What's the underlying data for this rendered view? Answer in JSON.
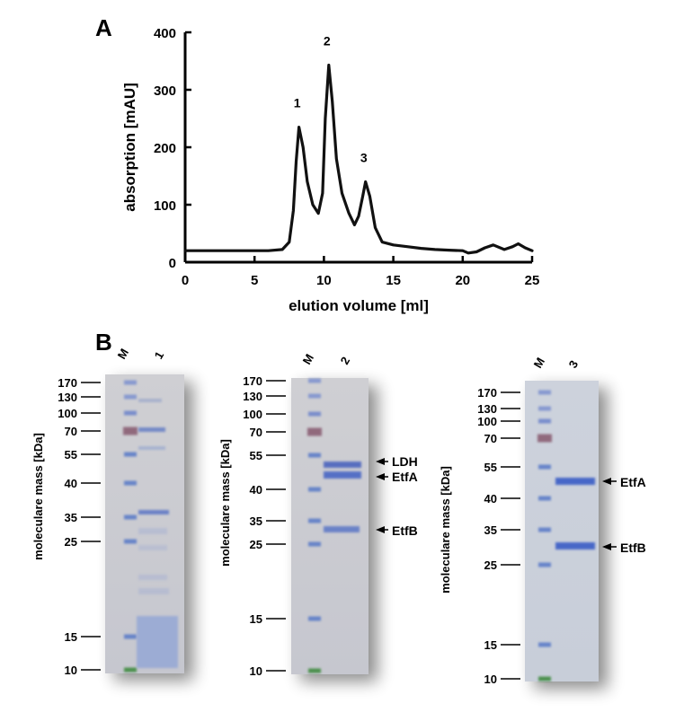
{
  "panel_a_label": "A",
  "panel_b_label": "B",
  "chart_data": {
    "type": "line",
    "xlabel": "elution volume [ml]",
    "ylabel": "absorption [mAU]",
    "xlim": [
      0,
      25
    ],
    "ylim": [
      0,
      400
    ],
    "xticks": [
      "0",
      "5",
      "10",
      "15",
      "20",
      "25"
    ],
    "yticks": [
      "0",
      "100",
      "200",
      "300",
      "400"
    ],
    "x": [
      0,
      1,
      2,
      3,
      4,
      5,
      6,
      7,
      7.5,
      7.8,
      8.0,
      8.2,
      8.5,
      8.8,
      9.2,
      9.6,
      9.9,
      10.1,
      10.35,
      10.6,
      10.9,
      11.3,
      11.8,
      12.2,
      12.5,
      12.8,
      13.0,
      13.3,
      13.7,
      14.2,
      15,
      16,
      17,
      18,
      19,
      20,
      20.4,
      21,
      21.6,
      22.2,
      23,
      23.6,
      24,
      24.5,
      25
    ],
    "y": [
      20,
      20,
      20,
      20,
      20,
      20,
      20,
      22,
      35,
      90,
      175,
      235,
      200,
      140,
      100,
      85,
      120,
      250,
      343,
      280,
      180,
      120,
      85,
      65,
      80,
      115,
      140,
      115,
      60,
      35,
      30,
      27,
      24,
      22,
      21,
      20,
      16,
      18,
      25,
      30,
      22,
      27,
      32,
      25,
      20
    ],
    "annotations": [
      {
        "text": "1",
        "x": 8.2,
        "y": 235
      },
      {
        "text": "2",
        "x": 10.35,
        "y": 343
      },
      {
        "text": "3",
        "x": 13.0,
        "y": 140
      }
    ],
    "grid": false
  },
  "gels": [
    {
      "ylabel": "moleculare mass [kDa]",
      "lanes": [
        "M",
        "1"
      ],
      "markers": [
        "170",
        "130",
        "100",
        "70",
        "55",
        "40",
        "35",
        "25",
        "15",
        "10"
      ],
      "annotations": []
    },
    {
      "ylabel": "moleculare mass [kDa]",
      "lanes": [
        "M",
        "2"
      ],
      "markers": [
        "170",
        "130",
        "100",
        "70",
        "55",
        "40",
        "35",
        "25",
        "15",
        "10"
      ],
      "annotations": [
        "LDH",
        "EtfA",
        "EtfB"
      ]
    },
    {
      "ylabel": "moleculare mass [kDa]",
      "lanes": [
        "M",
        "3"
      ],
      "markers": [
        "170",
        "130",
        "100",
        "70",
        "55",
        "40",
        "35",
        "25",
        "15",
        "10"
      ],
      "annotations": [
        "EtfA",
        "EtfB"
      ]
    }
  ]
}
